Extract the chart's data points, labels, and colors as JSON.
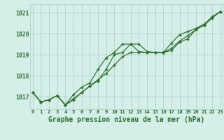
{
  "title": "Graphe pression niveau de la mer (hPa)",
  "hours": [
    0,
    1,
    2,
    3,
    4,
    5,
    6,
    7,
    8,
    9,
    10,
    11,
    12,
    13,
    14,
    15,
    16,
    17,
    18,
    19,
    20,
    21,
    22,
    23
  ],
  "line1": [
    1017.2,
    1016.75,
    1016.85,
    1017.05,
    1016.6,
    1016.85,
    1017.2,
    1017.5,
    1017.75,
    1018.3,
    1019.0,
    1019.1,
    1019.5,
    1019.5,
    1019.15,
    1019.1,
    1019.1,
    1019.2,
    1019.6,
    1019.75,
    1020.2,
    1020.4,
    1020.8,
    1021.05
  ],
  "line2": [
    1017.2,
    1016.75,
    1016.85,
    1017.05,
    1016.6,
    1017.1,
    1017.45,
    1017.65,
    1018.3,
    1018.85,
    1019.1,
    1019.5,
    1019.5,
    1019.15,
    1019.1,
    1019.1,
    1019.1,
    1019.55,
    1019.95,
    1020.1,
    1020.25,
    1020.45,
    1020.8,
    1021.05
  ],
  "line3": [
    1017.2,
    1016.75,
    1016.85,
    1017.05,
    1016.6,
    1016.9,
    1017.2,
    1017.5,
    1017.8,
    1018.1,
    1018.5,
    1018.9,
    1019.1,
    1019.1,
    1019.1,
    1019.1,
    1019.1,
    1019.3,
    1019.65,
    1019.9,
    1020.2,
    1020.4,
    1020.75,
    1021.05
  ],
  "line_color": "#2d6e2d",
  "bg_color": "#d4eee8",
  "grid_color": "#a8ccc6",
  "axis_color": "#2d6e2d",
  "ylim": [
    1016.4,
    1021.4
  ],
  "yticks": [
    1017,
    1018,
    1019,
    1020,
    1021
  ],
  "marker": "+"
}
